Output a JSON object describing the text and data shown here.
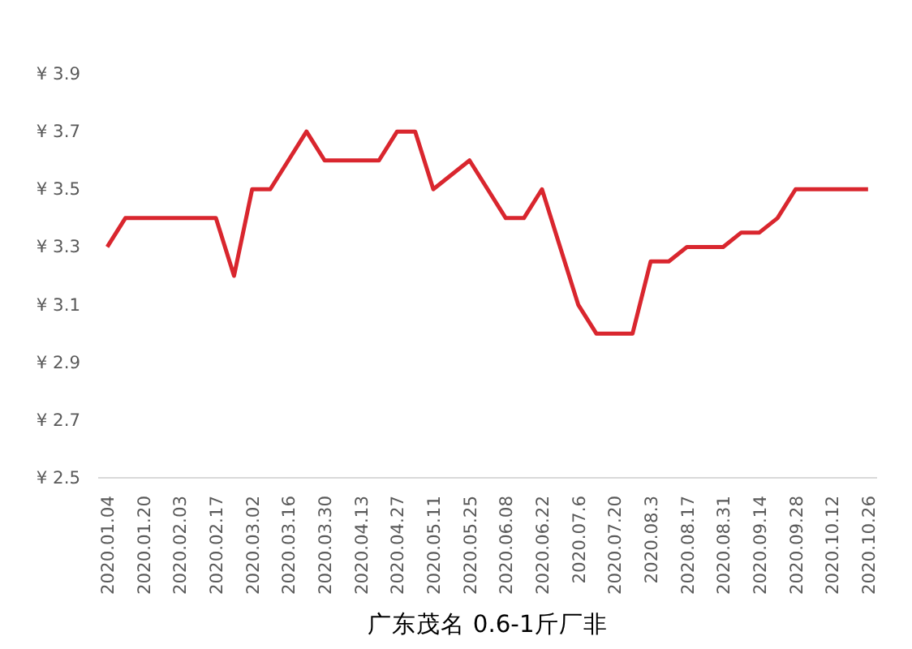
{
  "chart_data": {
    "type": "line",
    "title": "广东茂名 0.6-1斤厂非",
    "categories": [
      "2020.01.04",
      null,
      "2020.01.20",
      null,
      "2020.02.03",
      null,
      "2020.02.17",
      null,
      "2020.03.02",
      null,
      "2020.03.16",
      null,
      "2020.03.30",
      null,
      "2020.04.13",
      null,
      "2020.04.27",
      null,
      "2020.05.11",
      null,
      "2020.05.25",
      null,
      "2020.06.08",
      null,
      "2020.06.22",
      null,
      "2020.07.6",
      null,
      "2020.07.20",
      null,
      "2020.08.3",
      null,
      "2020.08.17",
      null,
      "2020.08.31",
      null,
      "2020.09.14",
      null,
      "2020.09.28",
      null,
      "2020.10.12",
      null,
      "2020.10.26"
    ],
    "series": [
      {
        "color": "#d9262e",
        "values": [
          3.3,
          3.4,
          3.4,
          3.4,
          3.4,
          3.4,
          3.4,
          3.2,
          3.5,
          3.5,
          3.6,
          3.7,
          3.6,
          3.6,
          3.6,
          3.6,
          3.7,
          3.7,
          3.5,
          3.55,
          3.6,
          3.5,
          3.4,
          3.4,
          3.5,
          3.3,
          3.1,
          3.0,
          3.0,
          3.0,
          3.25,
          3.25,
          3.3,
          3.3,
          3.3,
          3.35,
          3.35,
          3.4,
          3.5,
          3.5,
          3.5,
          3.5,
          3.5
        ]
      }
    ],
    "ylim": [
      2.5,
      3.9
    ],
    "yticks": [
      {
        "value": 2.5,
        "label": "¥ 2.5"
      },
      {
        "value": 2.7,
        "label": "¥ 2.7"
      },
      {
        "value": 2.9,
        "label": "¥ 2.9"
      },
      {
        "value": 3.1,
        "label": "¥ 3.1"
      },
      {
        "value": 3.3,
        "label": "¥ 3.3"
      },
      {
        "value": 3.5,
        "label": "¥ 3.5"
      },
      {
        "value": 3.7,
        "label": "¥ 3.7"
      },
      {
        "value": 3.9,
        "label": "¥ 3.9"
      }
    ],
    "grid": false,
    "marker": "none",
    "line_style": "solid"
  }
}
